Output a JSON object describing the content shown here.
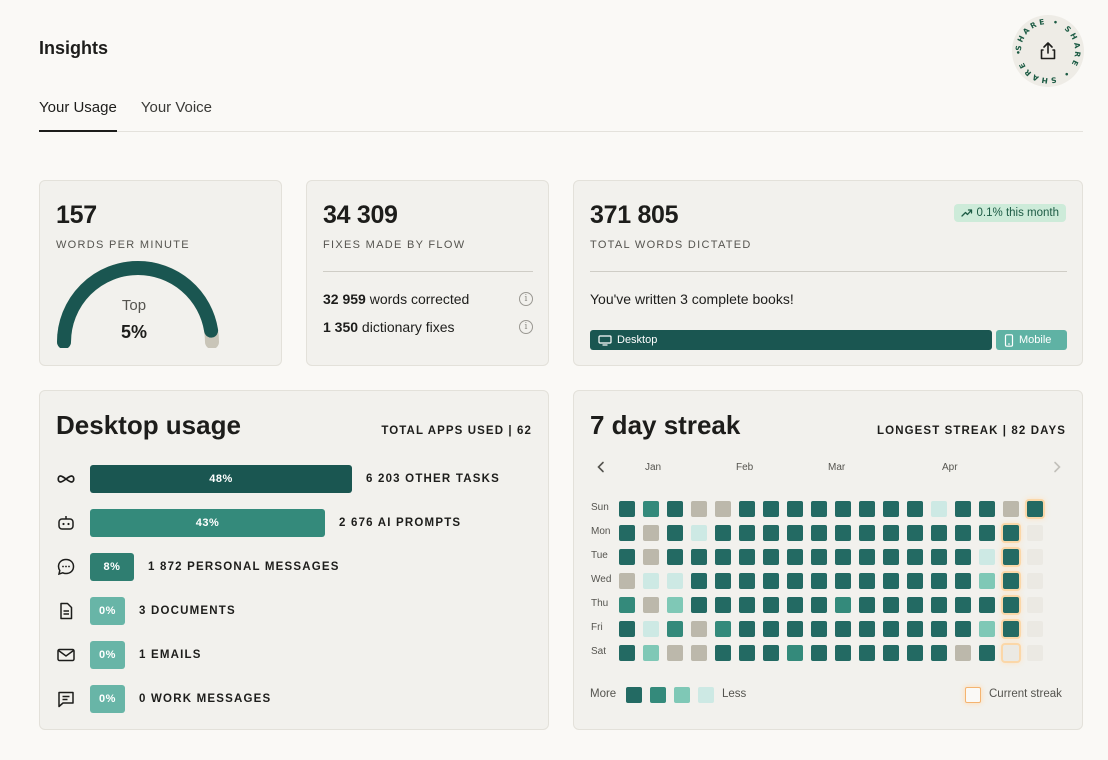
{
  "header": {
    "title": "Insights",
    "share_label": "SHARE"
  },
  "tabs": [
    {
      "label": "Your Usage",
      "active": true
    },
    {
      "label": "Your Voice",
      "active": false
    }
  ],
  "wpm": {
    "value": "157",
    "label": "WORDS PER MINUTE",
    "gauge_top_label": "Top",
    "gauge_value": "5%",
    "gauge_fill_fraction": 0.95
  },
  "fixes": {
    "value": "34 309",
    "label": "FIXES MADE BY FLOW",
    "rows": [
      {
        "num": "32 959",
        "text": " words corrected"
      },
      {
        "num": "1 350",
        "text": " dictionary fixes"
      }
    ]
  },
  "total": {
    "value": "371 805",
    "label": "TOTAL WORDS DICTATED",
    "badge": "0.1% this month",
    "message": "You've written 3 complete books!",
    "desktop_label": "Desktop",
    "mobile_label": "Mobile",
    "desktop_share": 0.85
  },
  "desktop": {
    "title": "Desktop usage",
    "total_label": "TOTAL APPS USED | 62",
    "apps": [
      {
        "icon": "infinity-icon",
        "pct": "48%",
        "share": 48,
        "label": "6 203 OTHER TASKS",
        "color": "#1a5651"
      },
      {
        "icon": "robot-icon",
        "pct": "43%",
        "share": 43,
        "label": "2 676 AI PROMPTS",
        "color": "#348a7b"
      },
      {
        "icon": "chat-bubble-icon",
        "pct": "8%",
        "share": 8,
        "label": "1 872 PERSONAL MESSAGES",
        "color": "#2f7e71"
      },
      {
        "icon": "document-icon",
        "pct": "0%",
        "share": 0,
        "label": "3 DOCUMENTS",
        "color": "#68b5a7"
      },
      {
        "icon": "envelope-icon",
        "pct": "0%",
        "share": 0,
        "label": "1 EMAILS",
        "color": "#68b5a7"
      },
      {
        "icon": "message-icon",
        "pct": "0%",
        "share": 0,
        "label": "0 WORK MESSAGES",
        "color": "#68b5a7"
      }
    ]
  },
  "streak": {
    "title": "7 day streak",
    "longest_label": "LONGEST STREAK | 82 DAYS",
    "months": [
      "Jan",
      "Feb",
      "Mar",
      "Apr"
    ],
    "days": [
      "Sun",
      "Mon",
      "Tue",
      "Wed",
      "Thu",
      "Fri",
      "Sat"
    ],
    "legend_more": "More",
    "legend_less": "Less",
    "current_label": "Current streak",
    "palette": {
      "0": "#bcb8ab",
      "1": "#236a63",
      "2": "#348a7b",
      "3": "#7fc8b6",
      "4": "#cde9e4",
      "5": "#ebe9e3"
    },
    "grid": [
      [
        1,
        2,
        1,
        0,
        0,
        1,
        1,
        1,
        1,
        1,
        1,
        1,
        1,
        4,
        1,
        1,
        0,
        1
      ],
      [
        1,
        0,
        1,
        4,
        1,
        1,
        1,
        1,
        1,
        1,
        1,
        1,
        1,
        1,
        1,
        1,
        1,
        5
      ],
      [
        1,
        0,
        1,
        1,
        1,
        1,
        1,
        1,
        1,
        1,
        1,
        1,
        1,
        1,
        1,
        4,
        1,
        5
      ],
      [
        0,
        4,
        4,
        1,
        1,
        1,
        1,
        1,
        1,
        1,
        1,
        1,
        1,
        1,
        1,
        3,
        1,
        5
      ],
      [
        2,
        0,
        3,
        1,
        1,
        1,
        1,
        1,
        1,
        2,
        1,
        1,
        1,
        1,
        1,
        1,
        1,
        5
      ],
      [
        1,
        4,
        2,
        0,
        2,
        1,
        1,
        1,
        1,
        1,
        1,
        1,
        1,
        1,
        1,
        3,
        1,
        5
      ],
      [
        1,
        3,
        0,
        0,
        1,
        1,
        1,
        2,
        1,
        1,
        1,
        1,
        1,
        1,
        0,
        1,
        5,
        5
      ]
    ],
    "current_streak_cells": [
      [
        0,
        17
      ],
      [
        1,
        16
      ],
      [
        2,
        16
      ],
      [
        3,
        16
      ],
      [
        4,
        16
      ],
      [
        5,
        16
      ],
      [
        6,
        16
      ]
    ]
  }
}
